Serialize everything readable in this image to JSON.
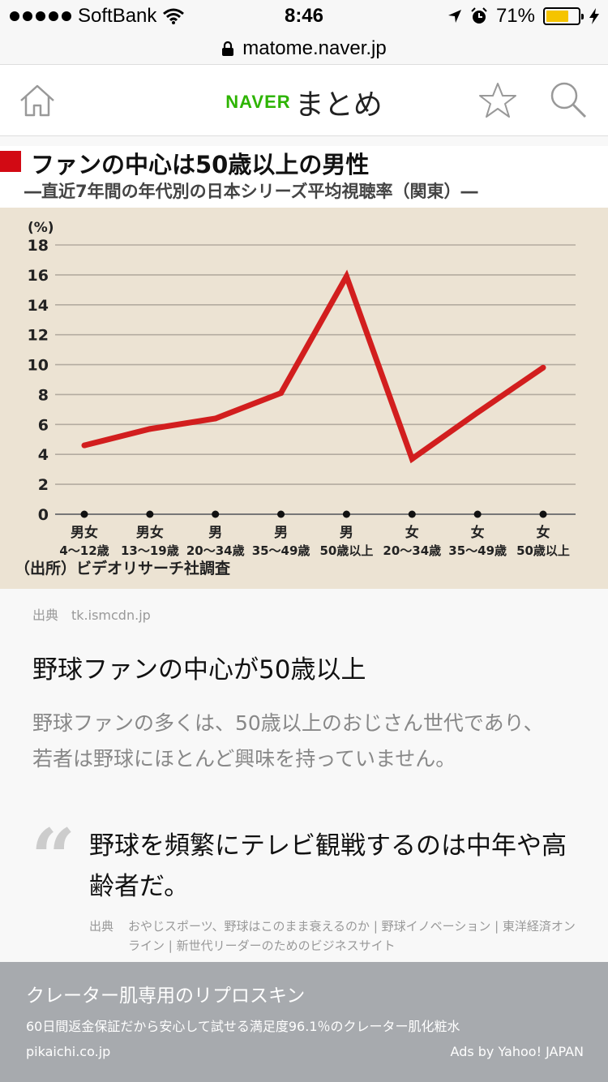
{
  "status": {
    "carrier": "SoftBank",
    "time": "8:46",
    "battery": "71%",
    "battery_level": 0.71
  },
  "url": "matome.naver.jp",
  "header": {
    "brand": "NAVER",
    "app_name": "まとめ"
  },
  "chart": {
    "title": "ファンの中心は50歳以上の男性",
    "subtitle": "―直近7年間の年代別の日本シリーズ平均視聴率（関東）―",
    "source": "（出所）ビデオリサーチ社調査"
  },
  "chart_data": {
    "type": "line",
    "title": "ファンの中心は50歳以上の男性",
    "subtitle": "―直近7年間の年代別の日本シリーズ平均視聴率（関東）―",
    "ylabel": "(%)",
    "ylim": [
      0,
      18
    ],
    "yticks": [
      0,
      2,
      4,
      6,
      8,
      10,
      12,
      14,
      16,
      18
    ],
    "grid": true,
    "categories": [
      [
        "男女",
        "4〜12歳"
      ],
      [
        "男女",
        "13〜19歳"
      ],
      [
        "男",
        "20〜34歳"
      ],
      [
        "男",
        "35〜49歳"
      ],
      [
        "男",
        "50歳以上"
      ],
      [
        "女",
        "20〜34歳"
      ],
      [
        "女",
        "35〜49歳"
      ],
      [
        "女",
        "50歳以上"
      ]
    ],
    "series": [
      {
        "values": [
          4.6,
          5.7,
          6.4,
          8.1,
          15.9,
          3.7,
          6.8,
          9.8
        ],
        "color": "#d21e1e"
      }
    ],
    "source": "（出所）ビデオリサーチ社調査"
  },
  "image_credit": {
    "label": "出典",
    "domain": "tk.ismcdn.jp"
  },
  "article": {
    "heading": "野球ファンの中心が50歳以上",
    "body": "野球ファンの多くは、50歳以上のおじさん世代であり、若者は野球にほとんど興味を持っていません。"
  },
  "quote": {
    "mark": "“",
    "text": "野球を頻繁にテレビ観戦するのは中年や高齢者だ。",
    "cite_label": "出典",
    "cite_source": "おやじスポーツ、野球はこのまま衰えるのか | 野球イノベーション | 東洋経済オンライン | 新世代リーダーのためのビジネスサイト"
  },
  "ad": {
    "title": "クレーター肌専用のリプロスキン",
    "description": "60日間返金保証だから安心して試せる満足度96.1％のクレーター肌化粧水",
    "domain": "pikaichi.co.jp",
    "provider": "Ads by Yahoo! JAPAN"
  },
  "colors": {
    "accent_red": "#d20a14",
    "brand_green": "#2db400",
    "chart_bg": "#ece3d3",
    "ad_bg": "#a7aaae"
  }
}
